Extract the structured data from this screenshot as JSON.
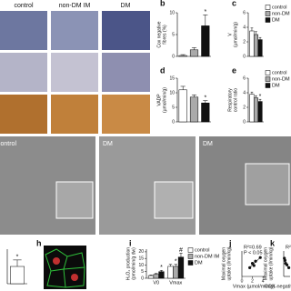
{
  "image_labels": {
    "top": [
      "control",
      "non-DM IM",
      "DM"
    ],
    "middle": [
      "control",
      "DM",
      "DM"
    ]
  },
  "panel_letters": {
    "h": "h"
  },
  "chart_data": [
    {
      "type": "bar",
      "panel": "b",
      "ylabel": [
        "Cox negative",
        "fibres (%)"
      ],
      "values": [
        0.2,
        1.5,
        7
      ],
      "errors": [
        0.2,
        0.5,
        2.5
      ],
      "colors": [
        "#ffffff",
        "#aaaaaa",
        "#111111"
      ],
      "value_annotations": [
        null,
        null,
        "*"
      ],
      "ylim": [
        0,
        10
      ],
      "yticks": [
        0,
        5,
        10
      ]
    },
    {
      "type": "bar",
      "panel": "c",
      "ylabel": [
        "V",
        "(µmol/min/g)"
      ],
      "categories": [
        null
      ],
      "series": [
        {
          "name": "control",
          "color": "#ffffff",
          "values": [
            3.5
          ],
          "errors": [
            0.4
          ]
        },
        {
          "name": "non-DM",
          "color": "#aaaaaa",
          "values": [
            3.0
          ],
          "errors": [
            0.4
          ]
        },
        {
          "name": "DM",
          "color": "#111111",
          "values": [
            2.3
          ],
          "errors": [
            0.3
          ]
        }
      ],
      "ylim": [
        0,
        6
      ],
      "yticks": [
        0,
        2,
        4,
        6
      ]
    },
    {
      "type": "bar",
      "panel": "d",
      "ylabel": [
        "VADP",
        "(µmol/min/g)"
      ],
      "values": [
        11,
        8.5,
        6.5
      ],
      "errors": [
        1.2,
        0.8,
        0.8
      ],
      "colors": [
        "#ffffff",
        "#aaaaaa",
        "#111111"
      ],
      "value_annotations": [
        null,
        null,
        "*"
      ],
      "ylim": [
        0,
        15
      ],
      "yticks": [
        0,
        5,
        10,
        15
      ]
    },
    {
      "type": "bar",
      "panel": "e",
      "ylabel": [
        "Respiratory",
        "control ratio"
      ],
      "categories": [
        null
      ],
      "series": [
        {
          "name": "control",
          "color": "#ffffff",
          "values": [
            3.8
          ],
          "errors": [
            0.3
          ],
          "annotations": [
            null
          ]
        },
        {
          "name": "non-DM",
          "color": "#aaaaaa",
          "values": [
            3.3
          ],
          "errors": [
            0.3
          ],
          "annotations": [
            null
          ]
        },
        {
          "name": "DM",
          "color": "#111111",
          "values": [
            2.8
          ],
          "errors": [
            0.3
          ],
          "annotations": [
            "*"
          ]
        }
      ],
      "ylim": [
        0,
        6
      ],
      "yticks": [
        0,
        2,
        4,
        6
      ]
    },
    {
      "type": "bar",
      "values": [
        4
      ],
      "errors": [
        1.5
      ],
      "colors": [
        "#ffffff"
      ],
      "value_annotations": [
        "*"
      ],
      "ylim": [
        0,
        8
      ]
    },
    {
      "type": "bar",
      "panel": "i",
      "ylabel": [
        "H₂O₂ production",
        "(pmol/min/g dw)"
      ],
      "categories": [
        "V0",
        "Vmax"
      ],
      "series": [
        {
          "name": "control",
          "color": "#ffffff",
          "values": [
            2,
            9
          ],
          "errors": [
            0.5,
            1.5
          ],
          "annotations": [
            null,
            null
          ]
        },
        {
          "name": "non-DM IM",
          "color": "#aaaaaa",
          "values": [
            3,
            9
          ],
          "errors": [
            0.6,
            1.5
          ],
          "annotations": [
            null,
            "*"
          ]
        },
        {
          "name": "DM",
          "color": "#111111",
          "values": [
            5,
            16
          ],
          "errors": [
            1,
            3
          ],
          "annotations": [
            "*",
            "#"
          ]
        }
      ],
      "ylim": [
        0,
        22
      ],
      "yticks": [
        0,
        5,
        10,
        15,
        20
      ]
    },
    {
      "type": "scatter",
      "panel": "j",
      "ylabel": [
        "Maximal oxygen",
        "uptake (l/min/kg)"
      ],
      "xlabel": "Vmax (µmol/min/g)",
      "annotation": [
        "R²=0.69",
        "P < 0.05"
      ],
      "x": [
        1.5,
        2.0,
        2.3,
        2.6,
        3.5
      ],
      "y": [
        1.2,
        1.8,
        1.5,
        2.1,
        2.6
      ],
      "xlim": [
        0,
        4.5
      ],
      "xticks": [
        0,
        2,
        4
      ],
      "ylim": [
        0,
        3.5
      ],
      "trendline": true,
      "color": "#111111"
    },
    {
      "type": "scatter",
      "panel": "k",
      "ylabel": [
        "Maximal oxygen",
        "uptake (l/min/kg)"
      ],
      "xlabel": "COX-negative fibres",
      "annotation": [
        "R²="
      ],
      "x": [
        1,
        2,
        3,
        5,
        8
      ],
      "y": [
        2.5,
        2.2,
        1.8,
        1.6,
        1.2
      ],
      "xlim": [
        0,
        10
      ],
      "ylim": [
        0,
        3.5
      ],
      "trendline": true,
      "color": "#111111"
    }
  ]
}
